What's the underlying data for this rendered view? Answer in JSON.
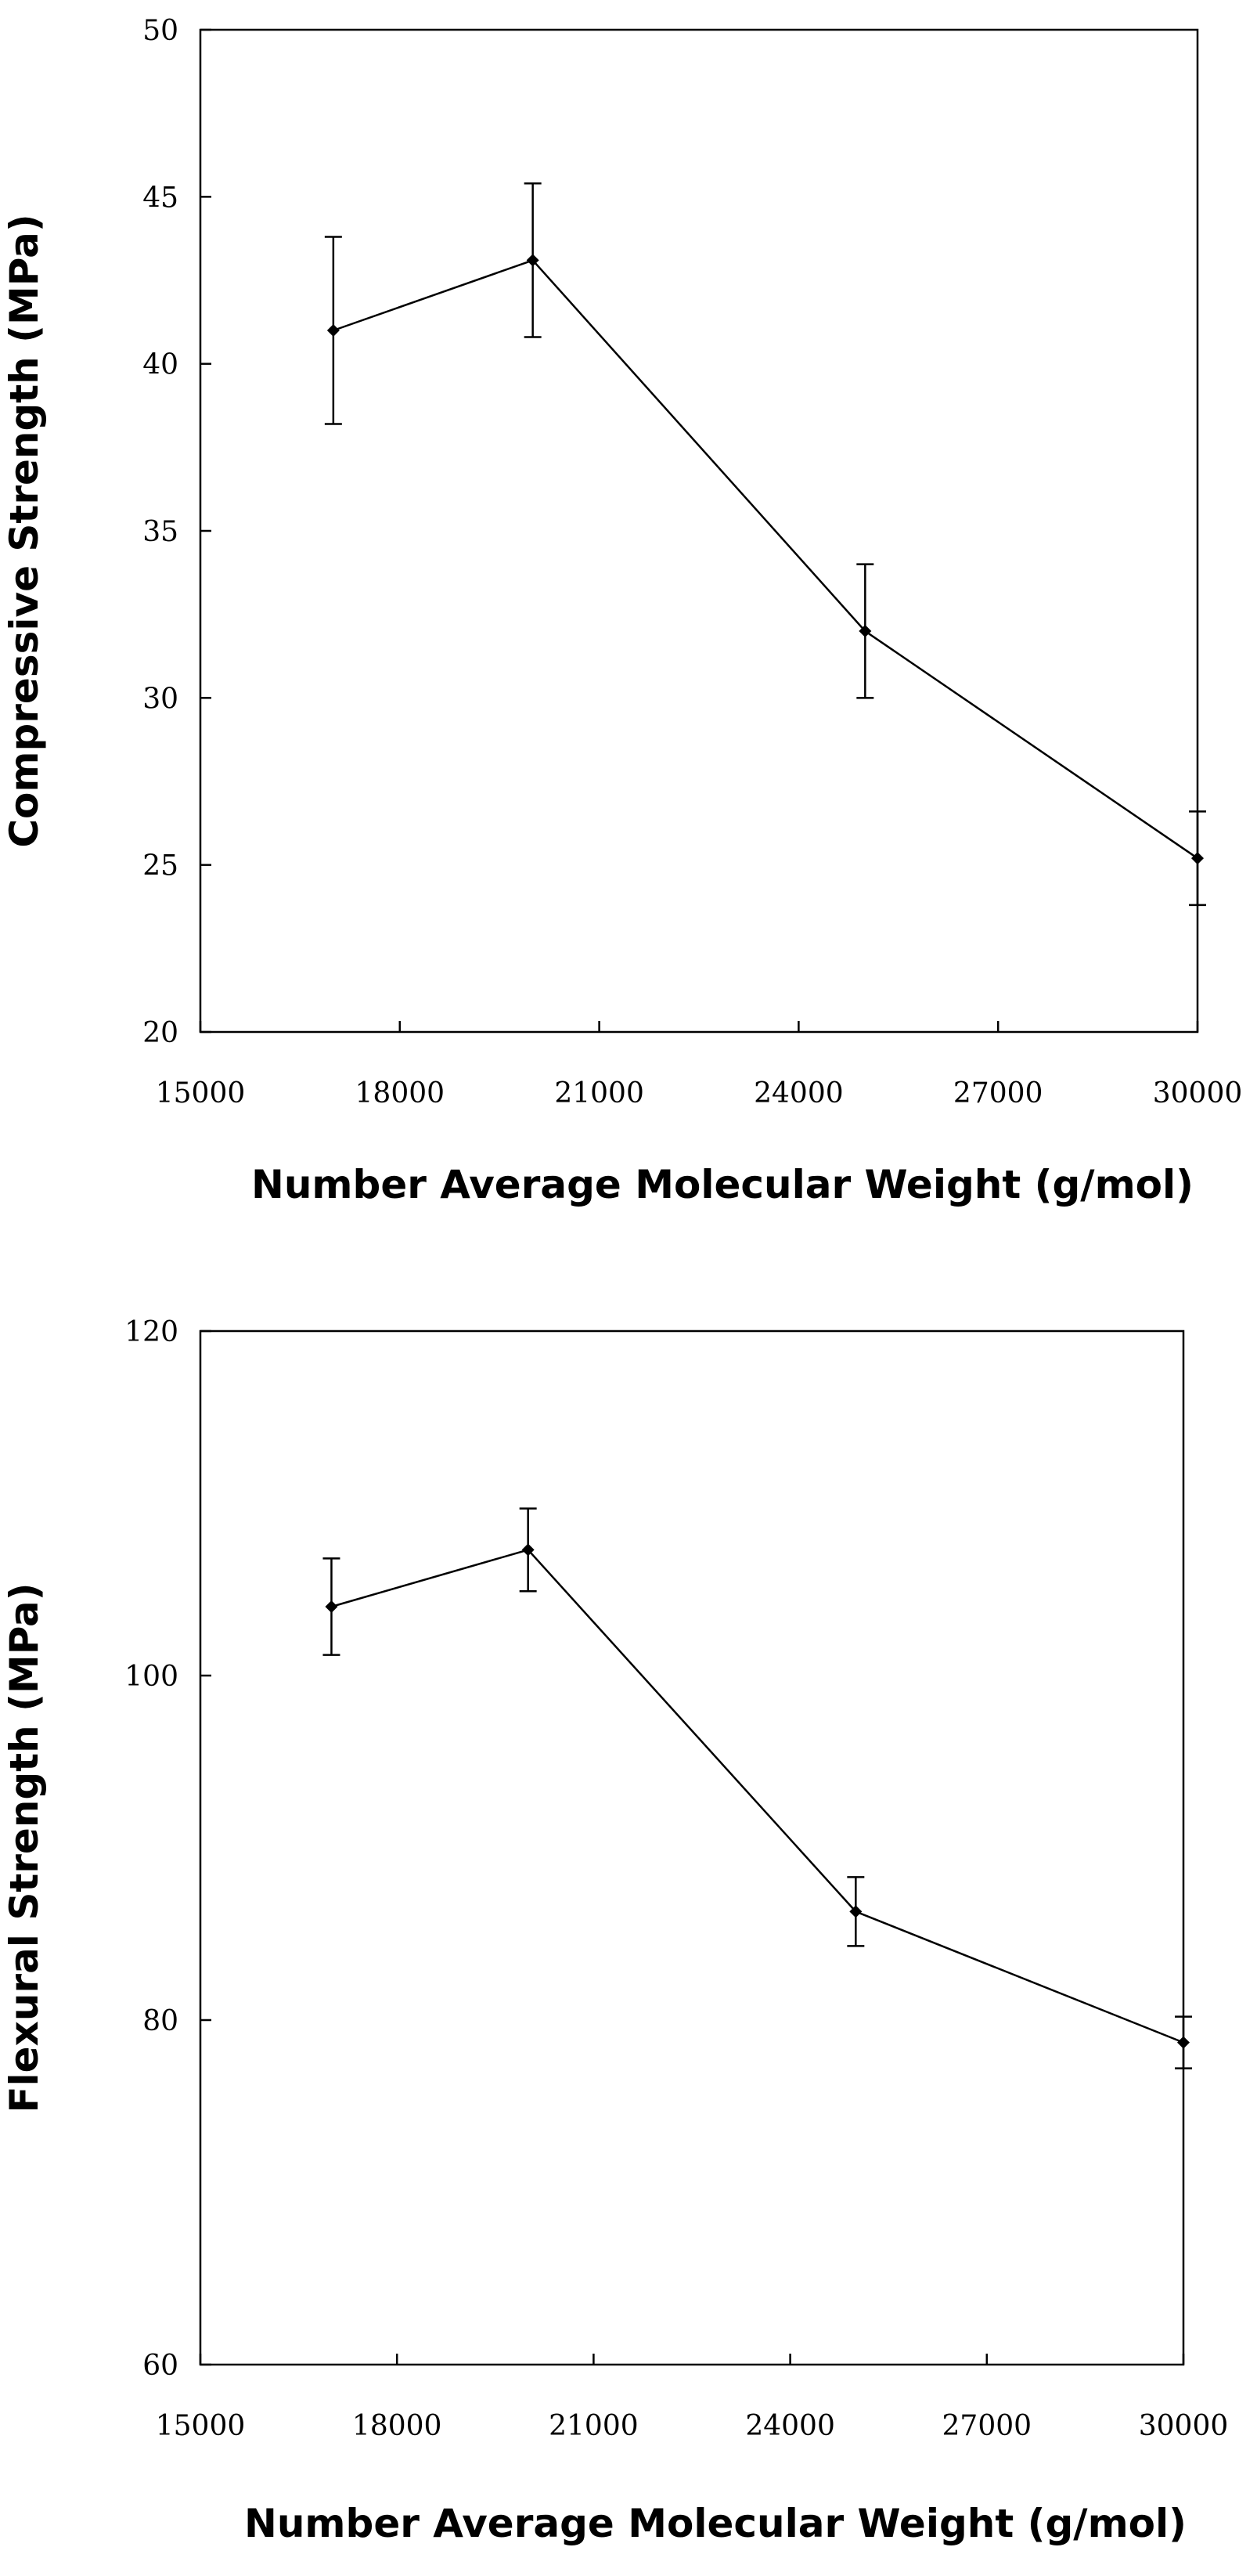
{
  "chart_data": [
    {
      "type": "line",
      "title": "",
      "xlabel": "Number Average Molecular Weight (g/mol)",
      "ylabel": "Compressive Strength (MPa)",
      "xlim": [
        15000,
        30000
      ],
      "ylim": [
        20,
        50
      ],
      "xticks": [
        15000,
        18000,
        21000,
        24000,
        27000,
        30000
      ],
      "yticks": [
        20,
        25,
        30,
        35,
        40,
        45,
        50
      ],
      "grid": false,
      "series": [
        {
          "name": "Compressive Strength",
          "x": [
            17000,
            20000,
            25000,
            30000
          ],
          "y": [
            41.0,
            43.1,
            32.0,
            25.2
          ],
          "error": [
            2.8,
            2.3,
            2.0,
            1.4
          ]
        }
      ]
    },
    {
      "type": "line",
      "title": "",
      "xlabel": "Number Average Molecular Weight (g/mol)",
      "ylabel": "Flexural Strength (MPa)",
      "xlim": [
        15000,
        30000
      ],
      "ylim": [
        60,
        120
      ],
      "xticks": [
        15000,
        18000,
        21000,
        24000,
        27000,
        30000
      ],
      "yticks": [
        60,
        80,
        100,
        120
      ],
      "grid": false,
      "series": [
        {
          "name": "Flexural Strength",
          "x": [
            17000,
            20000,
            25000,
            30000
          ],
          "y": [
            104.0,
            107.3,
            86.3,
            78.7
          ],
          "error": [
            2.8,
            2.4,
            2.0,
            1.5
          ]
        }
      ]
    }
  ]
}
